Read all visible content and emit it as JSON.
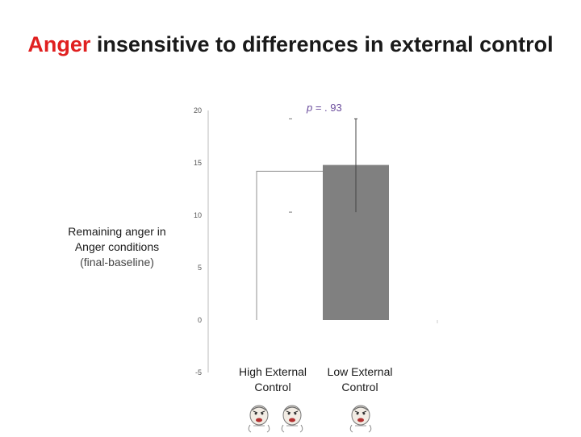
{
  "title": {
    "accent": "Anger",
    "rest": " insensitive to differences in external control"
  },
  "ylabel": {
    "line1": "Remaining anger in",
    "line2": "Anger conditions",
    "line3": "(final-baseline)"
  },
  "annotation": {
    "p_letter": "p",
    "p_value": " = . 93"
  },
  "colors": {
    "accent": "#e02020",
    "bar_low": "#808080",
    "bar_high_outline": "#909090",
    "annotation": "#6a4c9c"
  },
  "icons": [
    "face-icon",
    "face-icon",
    "face-icon"
  ],
  "chart_data": {
    "type": "bar",
    "categories": [
      "High External Control",
      "Low External Control"
    ],
    "category_lines": [
      [
        "High External",
        "Control"
      ],
      [
        "Low External",
        "Control"
      ]
    ],
    "values": [
      14.2,
      14.8
    ],
    "error_upper": [
      19.2,
      19.2
    ],
    "error_lower": [
      10.3,
      10.3
    ],
    "ylim": [
      -5,
      20
    ],
    "yticks": [
      20,
      15,
      10,
      5,
      0,
      -5
    ],
    "title": "Anger insensitive to differences in external control",
    "ylabel": "Remaining anger in Anger conditions (final-baseline)",
    "xlabel": ""
  }
}
